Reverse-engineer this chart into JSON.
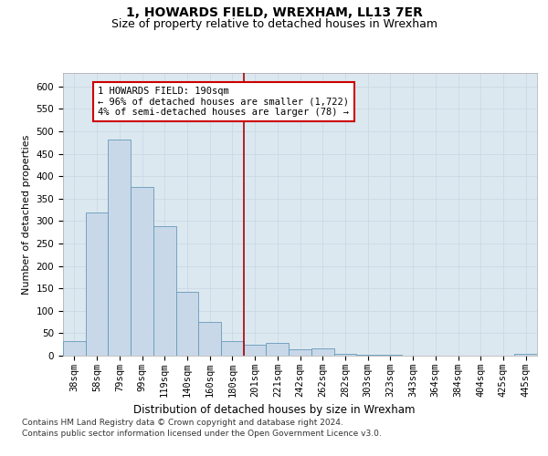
{
  "title": "1, HOWARDS FIELD, WREXHAM, LL13 7ER",
  "subtitle": "Size of property relative to detached houses in Wrexham",
  "xlabel": "Distribution of detached houses by size in Wrexham",
  "ylabel": "Number of detached properties",
  "categories": [
    "38sqm",
    "58sqm",
    "79sqm",
    "99sqm",
    "119sqm",
    "140sqm",
    "160sqm",
    "180sqm",
    "201sqm",
    "221sqm",
    "242sqm",
    "262sqm",
    "282sqm",
    "303sqm",
    "323sqm",
    "343sqm",
    "364sqm",
    "384sqm",
    "404sqm",
    "425sqm",
    "445sqm"
  ],
  "values": [
    33,
    320,
    482,
    375,
    288,
    142,
    75,
    33,
    25,
    28,
    14,
    16,
    5,
    3,
    2,
    1,
    1,
    0,
    0,
    0,
    4
  ],
  "bar_color": "#c8d8e8",
  "bar_edge_color": "#6699bb",
  "property_line_x": 7.5,
  "annotation_line1": "1 HOWARDS FIELD: 190sqm",
  "annotation_line2": "← 96% of detached houses are smaller (1,722)",
  "annotation_line3": "4% of semi-detached houses are larger (78) →",
  "annotation_box_color": "#ffffff",
  "annotation_box_edge_color": "#cc0000",
  "vline_color": "#aa0000",
  "grid_color": "#ccd9e6",
  "background_color": "#dce8f0",
  "ylim": [
    0,
    630
  ],
  "yticks": [
    0,
    50,
    100,
    150,
    200,
    250,
    300,
    350,
    400,
    450,
    500,
    550,
    600
  ],
  "footer_line1": "Contains HM Land Registry data © Crown copyright and database right 2024.",
  "footer_line2": "Contains public sector information licensed under the Open Government Licence v3.0.",
  "title_fontsize": 10,
  "subtitle_fontsize": 9,
  "xlabel_fontsize": 8.5,
  "ylabel_fontsize": 8,
  "tick_fontsize": 7.5,
  "annotation_fontsize": 7.5,
  "footer_fontsize": 6.5
}
